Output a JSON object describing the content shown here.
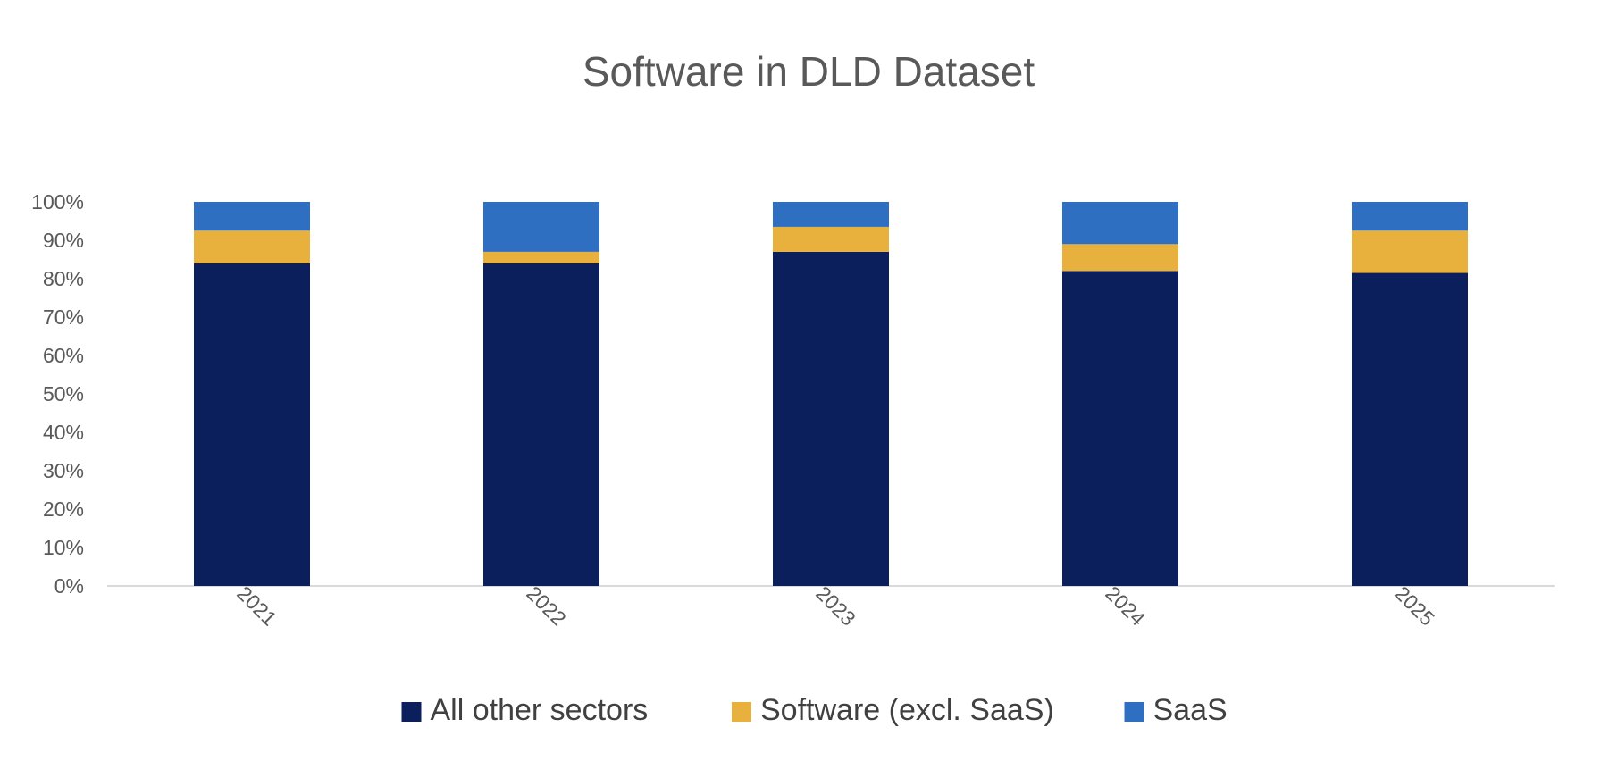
{
  "chart_data": {
    "type": "bar",
    "stacked": true,
    "title": "Software in DLD Dataset",
    "xlabel": "",
    "ylabel": "",
    "categories": [
      "2021",
      "2022",
      "2023",
      "2024",
      "2025"
    ],
    "series": [
      {
        "name": "All other sectors",
        "values": [
          84,
          84,
          87,
          82,
          81.5
        ],
        "color": "#0b1f5c"
      },
      {
        "name": "Software (excl. SaaS)",
        "values": [
          8.5,
          3,
          6.5,
          7,
          11
        ],
        "color": "#e8b03c"
      },
      {
        "name": "SaaS",
        "values": [
          7.5,
          13,
          6.5,
          11,
          7.5
        ],
        "color": "#2f6fc1"
      }
    ],
    "ylim": [
      0,
      100
    ],
    "y_ticks": [
      "0%",
      "10%",
      "20%",
      "30%",
      "40%",
      "50%",
      "60%",
      "70%",
      "80%",
      "90%",
      "100%"
    ],
    "grid": false,
    "legend_position": "bottom",
    "x_tick_rotation": "rotated"
  }
}
